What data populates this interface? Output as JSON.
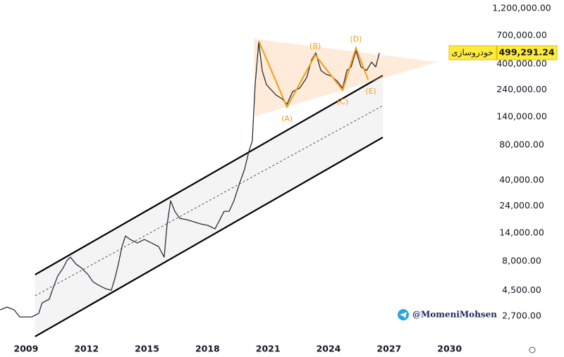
{
  "chart_data": {
    "type": "line",
    "log_y": true,
    "xlim": [
      2007.71,
      2031.83
    ],
    "ylim": [
      1750,
      1420000
    ],
    "xticks": [
      2009,
      2012,
      2015,
      2018,
      2021,
      2024,
      2027,
      2030
    ],
    "yticks": [
      {
        "value": 1200000,
        "label": "1,200,000.00"
      },
      {
        "value": 700000,
        "label": "700,000.00"
      },
      {
        "value": 400000,
        "label": "400,000.00"
      },
      {
        "value": 240000,
        "label": "240,000.00"
      },
      {
        "value": 140000,
        "label": "140,000.00"
      },
      {
        "value": 80000,
        "label": "80,000.00"
      },
      {
        "value": 40000,
        "label": "40,000.00"
      },
      {
        "value": 24000,
        "label": "24,000.00"
      },
      {
        "value": 14000,
        "label": "14,000.00"
      },
      {
        "value": 8000,
        "label": "8,000.00"
      },
      {
        "value": 4500,
        "label": "4,500.00"
      },
      {
        "value": 2700,
        "label": "2,700.00"
      }
    ],
    "series": [
      {
        "color": "#2a2e39",
        "x": [
          2007.71,
          2008.06,
          2008.41,
          2008.69,
          2009.28,
          2009.63,
          2009.8,
          2010.15,
          2010.33,
          2010.57,
          2010.85,
          2011.03,
          2011.2,
          2011.48,
          2011.73,
          2012.08,
          2012.32,
          2012.6,
          2012.95,
          2013.23,
          2013.41,
          2013.58,
          2013.76,
          2013.93,
          2014.17,
          2014.52,
          2014.87,
          2015.22,
          2015.57,
          2015.85,
          2015.99,
          2016.17,
          2016.38,
          2016.62,
          2016.97,
          2017.32,
          2017.67,
          2018.02,
          2018.37,
          2018.61,
          2018.82,
          2019.07,
          2019.31,
          2019.59,
          2019.84,
          2020.05,
          2020.22,
          2020.36,
          2020.54,
          2020.71,
          2020.92,
          2021.17,
          2021.41,
          2021.69,
          2021.94,
          2022.22,
          2022.57,
          2022.92,
          2023.16,
          2023.37,
          2023.62,
          2023.86,
          2024.14,
          2024.42,
          2024.7,
          2024.91,
          2025.12,
          2025.36,
          2025.61,
          2025.89,
          2026.13,
          2026.34,
          2026.52
        ],
        "values": [
          3055,
          3230,
          3055,
          2655,
          2655,
          2850,
          3515,
          3770,
          4645,
          5970,
          7060,
          8110,
          8690,
          7570,
          7060,
          6140,
          5335,
          4980,
          4645,
          4515,
          5725,
          7570,
          10740,
          13220,
          12330,
          11510,
          12330,
          11510,
          10740,
          8690,
          16290,
          26550,
          21530,
          18750,
          18240,
          17500,
          16750,
          16290,
          15210,
          18240,
          21530,
          21530,
          26550,
          37670,
          49770,
          70630,
          87100,
          265500,
          613800,
          351600,
          265500,
          237700,
          215300,
          200900,
          179900,
          231200,
          247700,
          305500,
          433500,
          497700,
          351600,
          327300,
          314100,
          285100,
          247700,
          351600,
          376700,
          518800,
          376700,
          351600,
          415000,
          376700,
          497700
        ]
      }
    ],
    "channel": {
      "x": [
        2009.45,
        2026.69
      ],
      "upper": [
        6140,
        318400
      ],
      "middle": [
        4040,
        175000
      ],
      "lower": [
        1800,
        93300
      ]
    },
    "triangle": {
      "x": [
        2020.29,
        2020.36,
        2029.39
      ],
      "values": [
        657700,
        141900,
        415000
      ]
    },
    "pattern": {
      "x": [
        2020.54,
        2021.94,
        2023.34,
        2024.7,
        2025.36,
        2025.96
      ],
      "values": [
        631000,
        170200,
        477500,
        237700,
        549500,
        293100
      ],
      "labels": [
        null,
        "(A)",
        "(B)",
        "(C)",
        "(D)",
        "(E)"
      ]
    },
    "last_price": {
      "name": "خودروسازی",
      "value": 499291.24,
      "label": "499,291.24"
    },
    "watermark": "@MomeniMohsen"
  }
}
